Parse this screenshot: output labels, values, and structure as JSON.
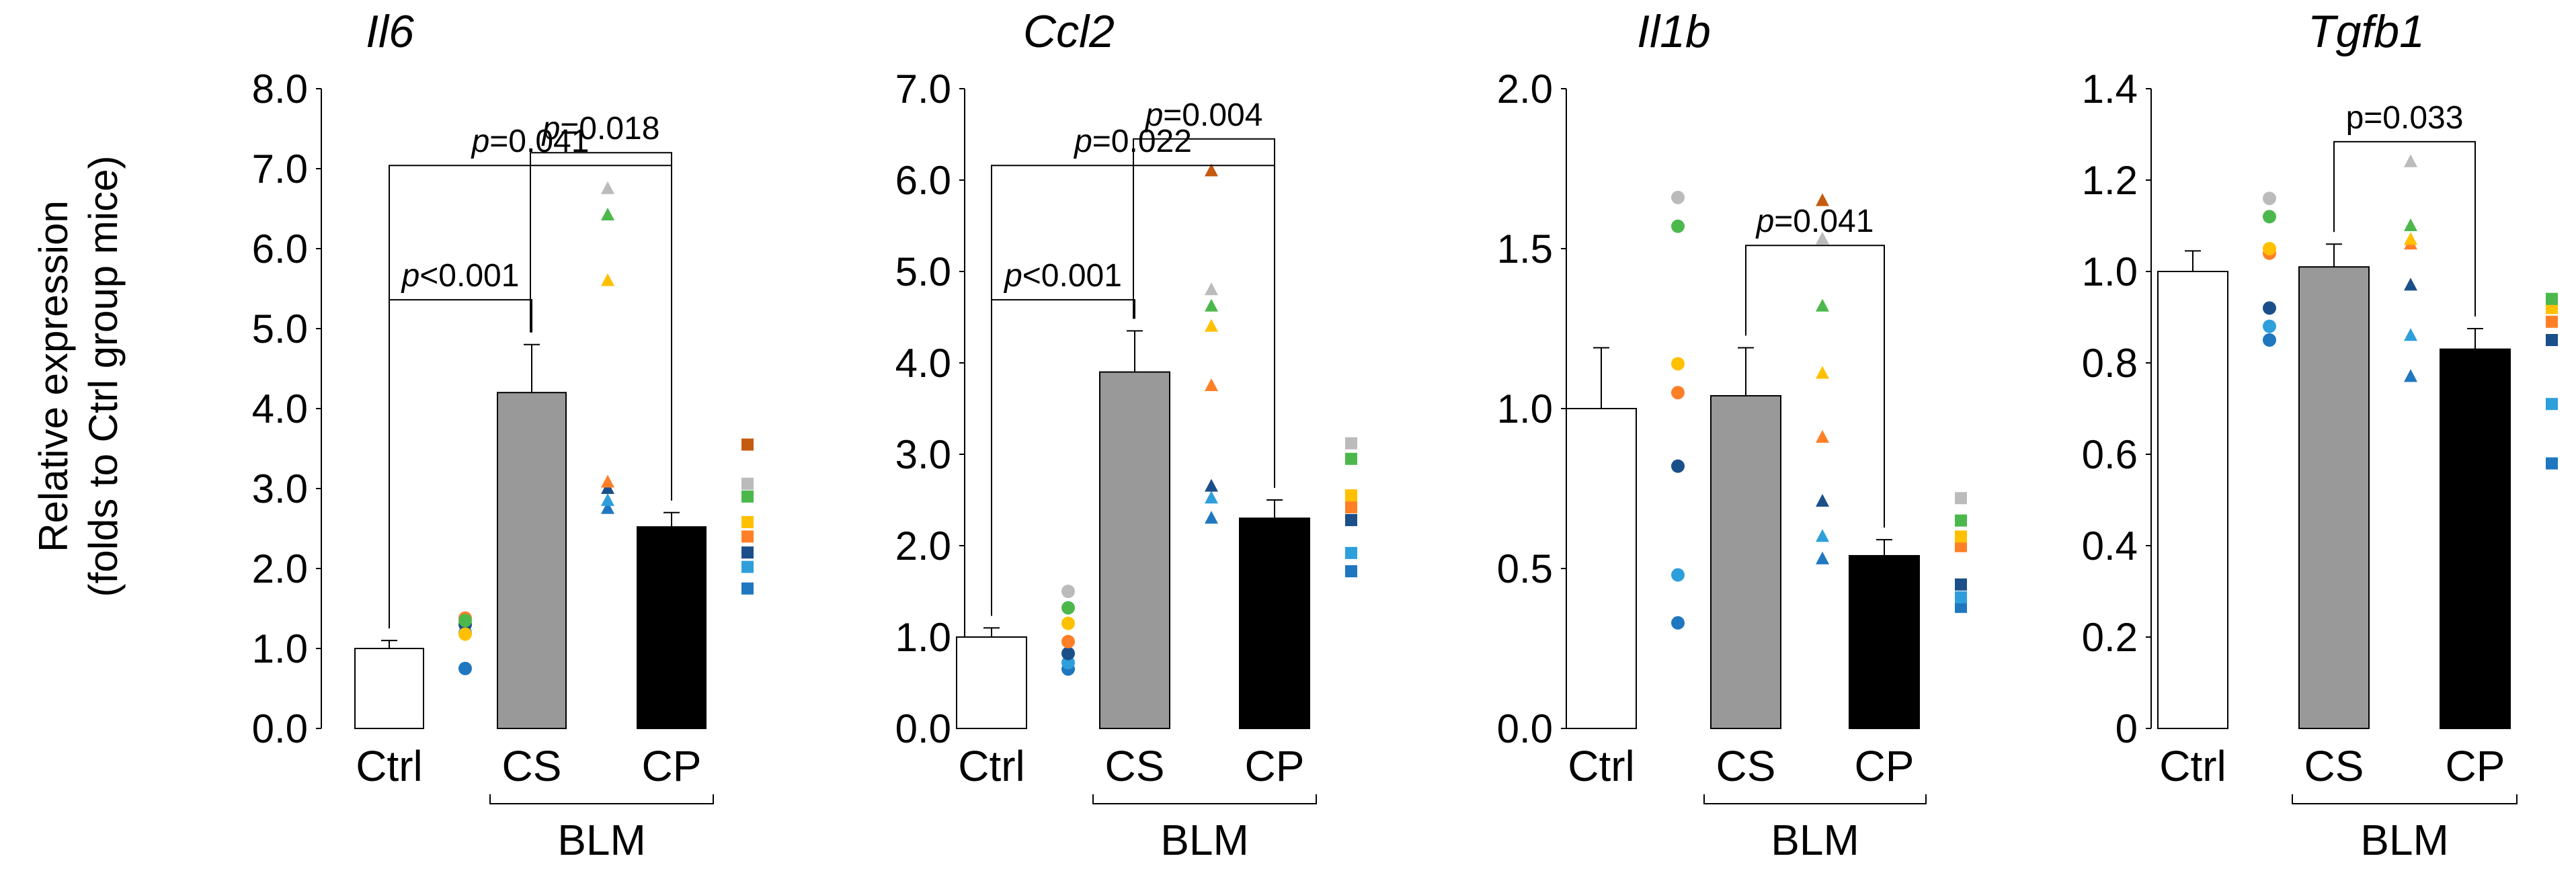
{
  "y_axis_label": [
    "Relative expression",
    "(folds to Ctrl group mice)"
  ],
  "chart_data": [
    {
      "type": "bar",
      "title": "Il6",
      "categories": [
        "Ctrl",
        "CS",
        "CP"
      ],
      "group_label": "BLM",
      "values": [
        1.0,
        4.2,
        2.52
      ],
      "errors": [
        0.1,
        0.6,
        0.18
      ],
      "ylim": [
        0,
        8
      ],
      "yticks": [
        "0.0",
        "1.0",
        "2.0",
        "3.0",
        "4.0",
        "5.0",
        "6.0",
        "7.0",
        "8.0"
      ],
      "points": [
        [
          0.75,
          1.2,
          1.3,
          1.38,
          1.18,
          1.35
        ],
        [
          2.75,
          2.85,
          3.0,
          3.08,
          5.6,
          6.42,
          6.75
        ],
        [
          1.75,
          2.02,
          2.2,
          2.4,
          2.58,
          2.9,
          3.06,
          3.55
        ]
      ],
      "annotations": [
        {
          "from": 0,
          "to": 2,
          "label": "p=0.041",
          "p": "p",
          "rest": "=0.041"
        },
        {
          "from": 0,
          "to": 1,
          "label": "p<0.001",
          "p": "p",
          "rest": "<0.001"
        },
        {
          "from": 1,
          "to": 2,
          "label": "p=0.018",
          "p": "p",
          "rest": "=0.018"
        }
      ]
    },
    {
      "type": "bar",
      "title": "Ccl2",
      "categories": [
        "Ctrl",
        "CS",
        "CP"
      ],
      "group_label": "BLM",
      "values": [
        1.0,
        3.9,
        2.3
      ],
      "errors": [
        0.1,
        0.45,
        0.2
      ],
      "ylim": [
        0,
        7
      ],
      "yticks": [
        "0.0",
        "1.0",
        "2.0",
        "3.0",
        "4.0",
        "5.0",
        "6.0",
        "7.0"
      ],
      "points": [
        [
          0.65,
          0.72,
          0.82,
          0.95,
          1.15,
          1.32,
          1.5
        ],
        [
          2.3,
          2.52,
          2.65,
          3.75,
          4.4,
          4.62,
          4.8,
          6.1
        ],
        [
          1.72,
          1.92,
          2.28,
          2.42,
          2.55,
          2.95,
          3.12
        ]
      ],
      "annotations": [
        {
          "from": 0,
          "to": 2,
          "label": "p=0.022",
          "p": "p",
          "rest": "=0.022"
        },
        {
          "from": 0,
          "to": 1,
          "label": "p<0.001",
          "p": "p",
          "rest": "<0.001"
        },
        {
          "from": 1,
          "to": 2,
          "label": "p=0.004",
          "p": "p",
          "rest": "=0.004"
        }
      ]
    },
    {
      "type": "bar",
      "title": "Il1b",
      "categories": [
        "Ctrl",
        "CS",
        "CP"
      ],
      "group_label": "BLM",
      "values": [
        1.0,
        1.04,
        0.54
      ],
      "errors": [
        0.19,
        0.15,
        0.05
      ],
      "ylim": [
        0,
        2
      ],
      "yticks": [
        "0.0",
        "0.5",
        "1.0",
        "1.5",
        "2.0"
      ],
      "points": [
        [
          0.33,
          0.48,
          0.82,
          1.05,
          1.14,
          1.57,
          1.66
        ],
        [
          0.53,
          0.6,
          0.71,
          0.91,
          1.11,
          1.32,
          1.53,
          1.65
        ],
        [
          0.38,
          0.41,
          0.45,
          0.57,
          0.6,
          0.65,
          0.72
        ]
      ],
      "annotations": [
        {
          "from": 1,
          "to": 2,
          "label": "p=0.041",
          "p": "p",
          "rest": "=0.041"
        }
      ]
    },
    {
      "type": "bar",
      "title": "Tgfb1",
      "categories": [
        "Ctrl",
        "CS",
        "CP"
      ],
      "group_label": "BLM",
      "values": [
        1.0,
        1.01,
        0.83
      ],
      "errors": [
        0.045,
        0.05,
        0.045
      ],
      "ylim": [
        0,
        1.4
      ],
      "yticks": [
        "0",
        "0.2",
        "0.4",
        "0.6",
        "0.8",
        "1.0",
        "1.2",
        "1.4"
      ],
      "points": [
        [
          0.85,
          0.88,
          0.92,
          1.04,
          1.05,
          1.12,
          1.16
        ],
        [
          0.77,
          0.86,
          0.97,
          1.06,
          1.07,
          1.1,
          1.24
        ],
        [
          0.58,
          0.71,
          0.85,
          0.89,
          0.92,
          0.94
        ]
      ],
      "annotations": [
        {
          "from": 1,
          "to": 2,
          "label": "p=0.033",
          "p": "",
          "rest": "p=0.033"
        }
      ]
    }
  ],
  "colors": {
    "ctrl_bar": "#ffffff",
    "cs_bar": "#999999",
    "cp_bar": "#000000",
    "points": [
      "#1f77c0",
      "#2f9fdc",
      "#1b4f8a",
      "#ff7f27",
      "#ffc000",
      "#4cb84c",
      "#bbbbbb",
      "#c55a11"
    ]
  }
}
